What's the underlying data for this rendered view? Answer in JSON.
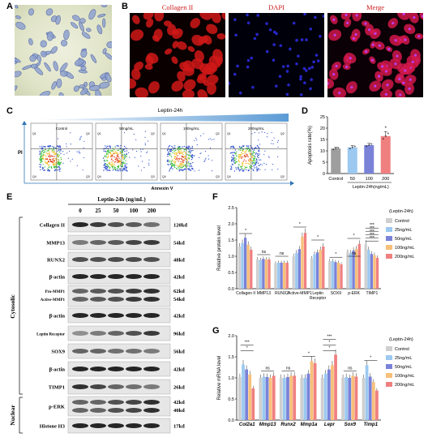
{
  "panels": {
    "A": "A",
    "B": "B",
    "C": "C",
    "D": "D",
    "E": "E",
    "F": "F",
    "G": "G"
  },
  "panelB": {
    "titles": [
      "Collagen II",
      "DAPI",
      "Merge"
    ]
  },
  "panelC": {
    "header": "Leptin-24h",
    "plots": [
      "Control",
      "50ng/mL",
      "100ng/mL",
      "200ng/mL"
    ],
    "ylabel": "PI",
    "xlabel": "Annexin V",
    "quadrants": [
      "Q1",
      "Q2",
      "Q3",
      "Q4"
    ]
  },
  "chart_data": [
    {
      "type": "bar",
      "panel": "D",
      "categories": [
        "Control",
        "50",
        "100",
        "200"
      ],
      "values": [
        11,
        11.5,
        12.5,
        16.5
      ],
      "errors": [
        0.6,
        0.8,
        0.8,
        2
      ],
      "colors": [
        "#9e9e9e",
        "#9cc9f0",
        "#7a82d8",
        "#f08080"
      ],
      "ylabel": "Apoptosis rate(%)",
      "xlabel": "Leptin-24h(ng/mL)",
      "ylim": [
        0,
        25
      ],
      "yticks": [
        0,
        5,
        10,
        15,
        20,
        25
      ],
      "annotation": "*"
    },
    {
      "type": "bar",
      "panel": "F",
      "categories": [
        "Collagen II",
        "MMP13",
        "RUNX2",
        "Active-MMP1",
        "Leptin Receptor",
        "SOX9",
        "p-ERK",
        "TIMP1"
      ],
      "series": [
        {
          "name": "Control",
          "color": "#cfcfcf",
          "values": [
            1.3,
            0.9,
            0.78,
            1.0,
            0.93,
            0.85,
            1.12,
            1.38
          ]
        },
        {
          "name": "25ng/mL",
          "color": "#9cc9f0",
          "values": [
            1.4,
            0.88,
            0.8,
            1.1,
            1.06,
            0.85,
            1.1,
            1.2
          ]
        },
        {
          "name": "50ng/mL",
          "color": "#7a82d8",
          "values": [
            1.57,
            0.92,
            0.8,
            1.22,
            1.12,
            0.82,
            1.18,
            1.07
          ]
        },
        {
          "name": "100ng/mL",
          "color": "#f7c07a",
          "values": [
            1.35,
            0.9,
            0.8,
            1.6,
            1.2,
            0.8,
            1.22,
            1.03
          ]
        },
        {
          "name": "200ng/mL",
          "color": "#f08080",
          "values": [
            1.2,
            0.9,
            0.8,
            1.72,
            1.3,
            0.75,
            1.38,
            0.95
          ]
        }
      ],
      "ylabel": "Relative protein level",
      "ylim": [
        0.0,
        2.5
      ],
      "yticks": [
        0.0,
        0.5,
        1.0,
        1.5,
        2.0,
        2.5
      ],
      "legend_title": "(Leptin-24h)",
      "annotations": [
        "*",
        "ns",
        "ns",
        "*",
        "*",
        "*",
        "ns",
        "*",
        "***",
        "***",
        "***",
        "***",
        "***"
      ]
    },
    {
      "type": "bar",
      "panel": "G",
      "categories": [
        "Col2a1",
        "Mmp13",
        "Runx2",
        "Mmp1a",
        "Lepr",
        "Sox9",
        "Timp1"
      ],
      "series": [
        {
          "name": "Control",
          "color": "#cfcfcf",
          "values": [
            1.02,
            1.0,
            1.0,
            1.0,
            1.0,
            1.0,
            1.0
          ]
        },
        {
          "name": "25ng/mL",
          "color": "#9cc9f0",
          "values": [
            1.32,
            1.03,
            1.0,
            1.0,
            1.1,
            1.02,
            1.3
          ]
        },
        {
          "name": "50ng/mL",
          "color": "#7a82d8",
          "values": [
            1.2,
            1.02,
            1.02,
            1.1,
            1.2,
            1.0,
            1.03
          ]
        },
        {
          "name": "100ng/mL",
          "color": "#f7c07a",
          "values": [
            1.08,
            1.0,
            1.05,
            1.4,
            1.3,
            1.05,
            0.9
          ]
        },
        {
          "name": "200ng/mL",
          "color": "#f08080",
          "values": [
            0.75,
            1.05,
            1.05,
            1.35,
            1.55,
            1.03,
            0.7
          ]
        }
      ],
      "ylabel": "Relative mRNA level",
      "ylim": [
        0.0,
        2.0
      ],
      "yticks": [
        0.0,
        0.5,
        1.0,
        1.5,
        2.0
      ],
      "legend_title": "(Leptin-24h)",
      "annotations": [
        "***",
        "*",
        "ns",
        "ns",
        "*",
        "***",
        "*",
        "*",
        "ns",
        "*"
      ]
    }
  ],
  "panelE": {
    "header": "Leptin-24h  (ng/mL)",
    "doses": [
      "0",
      "25",
      "50",
      "100",
      "200"
    ],
    "rows": [
      {
        "label": "Collagen II",
        "kd": "120kd"
      },
      {
        "label": "MMP13",
        "kd": "54kd"
      },
      {
        "label": "RUNX2",
        "kd": "48kd"
      },
      {
        "label": "β-actin",
        "kd": "42kd"
      },
      {
        "label": "Pro-MMP1",
        "label2": "Active-MMP1",
        "kd": "62kd",
        "kd2": "54kd"
      },
      {
        "label": "β-actin",
        "kd": "42kd"
      },
      {
        "label": "Leptin Receptor",
        "kd": "96kd"
      },
      {
        "label": "SOX9",
        "kd": "56kd"
      },
      {
        "label": "β-actin",
        "kd": "42kd"
      },
      {
        "label": "TIMP1",
        "kd": "26kd"
      },
      {
        "label": "p-ERK",
        "kd": "42kd",
        "kd2": "40kd"
      },
      {
        "label": "Histone H3",
        "kd": "17kd"
      }
    ],
    "groups": [
      "Cytosolic",
      "Nuclear"
    ]
  }
}
